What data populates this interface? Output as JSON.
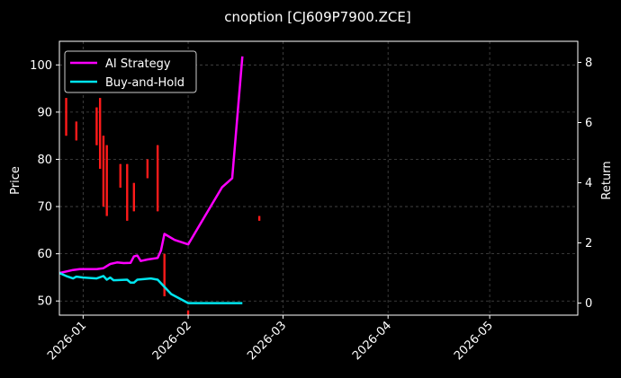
{
  "chart_data": {
    "type": "line",
    "title": "cnoption [CJ609P7900.ZCE]",
    "ylabel_left": "Price",
    "ylabel_right": "Return",
    "x_ticks": [
      "2026-01",
      "2026-02",
      "2026-03",
      "2026-04",
      "2026-05"
    ],
    "y_left_ticks": [
      50,
      60,
      70,
      80,
      90,
      100
    ],
    "y_left_range": [
      47,
      105
    ],
    "y_right_ticks": [
      0,
      2,
      4,
      6,
      8
    ],
    "y_right_range": [
      -0.4,
      8.7
    ],
    "x_range": [
      "2025-12-25",
      "2026-05-27"
    ],
    "grid": true,
    "legend_position": "top-left",
    "series": [
      {
        "name": "AI Strategy",
        "color": "#ff00ff",
        "axis": "right",
        "points": [
          [
            "2025-12-25",
            1.0
          ],
          [
            "2025-12-29",
            1.1
          ],
          [
            "2025-12-31",
            1.13
          ],
          [
            "2026-01-05",
            1.13
          ],
          [
            "2026-01-07",
            1.16
          ],
          [
            "2026-01-09",
            1.3
          ],
          [
            "2026-01-11",
            1.35
          ],
          [
            "2026-01-13",
            1.33
          ],
          [
            "2026-01-15",
            1.34
          ],
          [
            "2026-01-16",
            1.55
          ],
          [
            "2026-01-17",
            1.58
          ],
          [
            "2026-01-18",
            1.4
          ],
          [
            "2026-01-20",
            1.45
          ],
          [
            "2026-01-23",
            1.5
          ],
          [
            "2026-01-24",
            1.75
          ],
          [
            "2026-01-25",
            2.3
          ],
          [
            "2026-01-28",
            2.1
          ],
          [
            "2026-02-01",
            1.95
          ],
          [
            "2026-02-06",
            2.9
          ],
          [
            "2026-02-11",
            3.85
          ],
          [
            "2026-02-14",
            4.15
          ],
          [
            "2026-02-17",
            8.2
          ]
        ]
      },
      {
        "name": "Buy-and-Hold",
        "color": "#00e5ee",
        "axis": "right",
        "points": [
          [
            "2025-12-25",
            1.0
          ],
          [
            "2025-12-27",
            0.9
          ],
          [
            "2025-12-29",
            0.82
          ],
          [
            "2025-12-30",
            0.88
          ],
          [
            "2026-01-01",
            0.85
          ],
          [
            "2026-01-05",
            0.82
          ],
          [
            "2026-01-07",
            0.9
          ],
          [
            "2026-01-08",
            0.78
          ],
          [
            "2026-01-09",
            0.85
          ],
          [
            "2026-01-10",
            0.76
          ],
          [
            "2026-01-14",
            0.78
          ],
          [
            "2026-01-15",
            0.68
          ],
          [
            "2026-01-16",
            0.68
          ],
          [
            "2026-01-17",
            0.78
          ],
          [
            "2026-01-21",
            0.82
          ],
          [
            "2026-01-23",
            0.78
          ],
          [
            "2026-01-27",
            0.3
          ],
          [
            "2026-02-01",
            0.0
          ],
          [
            "2026-02-17",
            0.0
          ]
        ]
      }
    ],
    "candles": [
      {
        "date": "2025-12-27",
        "open": 93,
        "high": 93,
        "low": 85,
        "close": 85
      },
      {
        "date": "2025-12-30",
        "open": 88,
        "high": 88,
        "low": 84,
        "close": 84
      },
      {
        "date": "2026-01-05",
        "open": 91,
        "high": 91,
        "low": 83,
        "close": 83
      },
      {
        "date": "2026-01-06",
        "open": 93,
        "high": 93,
        "low": 78,
        "close": 78
      },
      {
        "date": "2026-01-07",
        "open": 85,
        "high": 85,
        "low": 70,
        "close": 70
      },
      {
        "date": "2026-01-08",
        "open": 83,
        "high": 83,
        "low": 68,
        "close": 68
      },
      {
        "date": "2026-01-12",
        "open": 79,
        "high": 79,
        "low": 74,
        "close": 74
      },
      {
        "date": "2026-01-14",
        "open": 79,
        "high": 79,
        "low": 67,
        "close": 67
      },
      {
        "date": "2026-01-16",
        "open": 75,
        "high": 75,
        "low": 69,
        "close": 69
      },
      {
        "date": "2026-01-20",
        "open": 80,
        "high": 80,
        "low": 76,
        "close": 76
      },
      {
        "date": "2026-01-23",
        "open": 83,
        "high": 83,
        "low": 69,
        "close": 69
      },
      {
        "date": "2026-01-25",
        "open": 60,
        "high": 60,
        "low": 51,
        "close": 51
      },
      {
        "date": "2026-02-01",
        "open": 48,
        "high": 48,
        "low": 47,
        "close": 47
      },
      {
        "date": "2026-02-22",
        "open": 68,
        "high": 68,
        "low": 67,
        "close": 67
      }
    ]
  }
}
